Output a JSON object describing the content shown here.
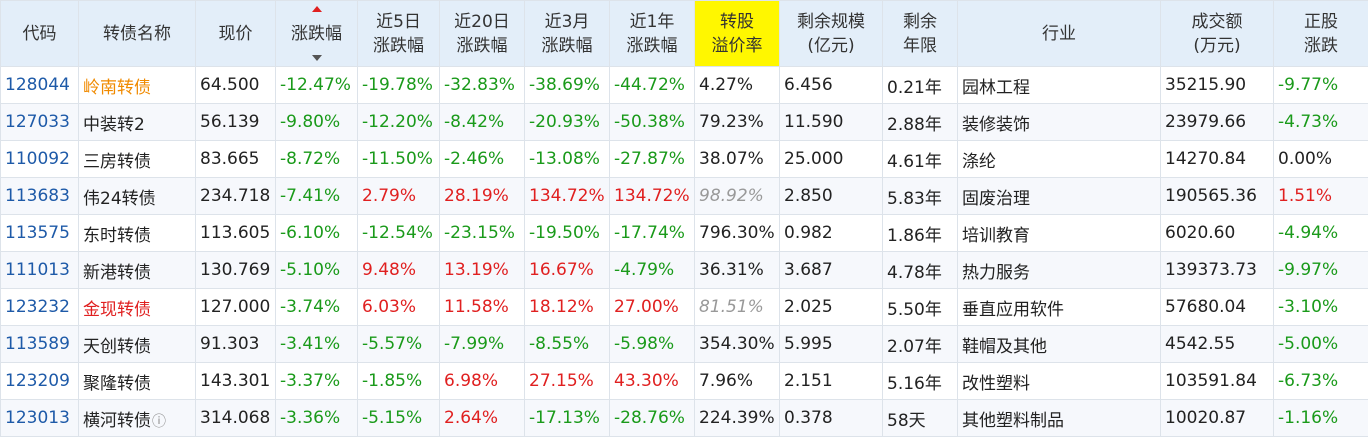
{
  "headers": {
    "code": "代码",
    "name": "转债名称",
    "price": "现价",
    "change": "涨跌幅",
    "chg5d_1": "近5日",
    "chg5d_2": "涨跌幅",
    "chg20d_1": "近20日",
    "chg20d_2": "涨跌幅",
    "chg3m_1": "近3月",
    "chg3m_2": "涨跌幅",
    "chg1y_1": "近1年",
    "chg1y_2": "涨跌幅",
    "premium_1": "转股",
    "premium_2": "溢价率",
    "scale_1": "剩余规模",
    "scale_2": "(亿元)",
    "term_1": "剩余",
    "term_2": "年限",
    "industry": "行业",
    "volume_1": "成交额",
    "volume_2": "(万元)",
    "stock_1": "正股",
    "stock_2": "涨跌"
  },
  "colors": {
    "header_bg": "#e3eef9",
    "highlight_header": "#fff700",
    "negative": "#1a9a1a",
    "positive": "#e02020",
    "code_link": "#1e5aa8",
    "name_orange": "#f08a00"
  },
  "rows": [
    {
      "code": "128044",
      "name": "岭南转债",
      "name_style": "orange",
      "price": "64.500",
      "change": "-12.47%",
      "chg5d": "-19.78%",
      "chg20d": "-32.83%",
      "chg3m": "-38.69%",
      "chg1y": "-44.72%",
      "premium": "4.27%",
      "premium_style": "normal",
      "scale": "6.456",
      "term": "0.21年",
      "industry": "园林工程",
      "volume": "35215.90",
      "stock": "-9.77%"
    },
    {
      "code": "127033",
      "name": "中装转2",
      "name_style": "normal",
      "price": "56.139",
      "change": "-9.80%",
      "chg5d": "-12.20%",
      "chg20d": "-8.42%",
      "chg3m": "-20.93%",
      "chg1y": "-50.38%",
      "premium": "79.23%",
      "premium_style": "normal",
      "scale": "11.590",
      "term": "2.88年",
      "industry": "装修装饰",
      "volume": "23979.66",
      "stock": "-4.73%"
    },
    {
      "code": "110092",
      "name": "三房转债",
      "name_style": "normal",
      "price": "83.665",
      "change": "-8.72%",
      "chg5d": "-11.50%",
      "chg20d": "-2.46%",
      "chg3m": "-13.08%",
      "chg1y": "-27.87%",
      "premium": "38.07%",
      "premium_style": "normal",
      "scale": "25.000",
      "term": "4.61年",
      "industry": "涤纶",
      "volume": "14270.84",
      "stock": "0.00%"
    },
    {
      "code": "113683",
      "name": "伟24转债",
      "name_style": "normal",
      "price": "234.718",
      "change": "-7.41%",
      "chg5d": "2.79%",
      "chg20d": "28.19%",
      "chg3m": "134.72%",
      "chg1y": "134.72%",
      "premium": "98.92%",
      "premium_style": "grey",
      "scale": "2.850",
      "term": "5.83年",
      "industry": "固废治理",
      "volume": "190565.36",
      "stock": "1.51%"
    },
    {
      "code": "113575",
      "name": "东时转债",
      "name_style": "normal",
      "price": "113.605",
      "change": "-6.10%",
      "chg5d": "-12.54%",
      "chg20d": "-23.15%",
      "chg3m": "-19.50%",
      "chg1y": "-17.74%",
      "premium": "796.30%",
      "premium_style": "normal",
      "scale": "0.982",
      "term": "1.86年",
      "industry": "培训教育",
      "volume": "6020.60",
      "stock": "-4.94%"
    },
    {
      "code": "111013",
      "name": "新港转债",
      "name_style": "normal",
      "price": "130.769",
      "change": "-5.10%",
      "chg5d": "9.48%",
      "chg20d": "13.19%",
      "chg3m": "16.67%",
      "chg1y": "-4.79%",
      "premium": "36.31%",
      "premium_style": "normal",
      "scale": "3.687",
      "term": "4.78年",
      "industry": "热力服务",
      "volume": "139373.73",
      "stock": "-9.97%"
    },
    {
      "code": "123232",
      "name": "金现转债",
      "name_style": "red",
      "price": "127.000",
      "change": "-3.74%",
      "chg5d": "6.03%",
      "chg20d": "11.58%",
      "chg3m": "18.12%",
      "chg1y": "27.00%",
      "premium": "81.51%",
      "premium_style": "grey",
      "scale": "2.025",
      "term": "5.50年",
      "industry": "垂直应用软件",
      "volume": "57680.04",
      "stock": "-3.10%"
    },
    {
      "code": "113589",
      "name": "天创转债",
      "name_style": "normal",
      "price": "91.303",
      "change": "-3.41%",
      "chg5d": "-5.57%",
      "chg20d": "-7.99%",
      "chg3m": "-8.55%",
      "chg1y": "-5.98%",
      "premium": "354.30%",
      "premium_style": "normal",
      "scale": "5.995",
      "term": "2.07年",
      "industry": "鞋帽及其他",
      "volume": "4542.55",
      "stock": "-5.00%"
    },
    {
      "code": "123209",
      "name": "聚隆转债",
      "name_style": "normal",
      "price": "143.301",
      "change": "-3.37%",
      "chg5d": "-1.85%",
      "chg20d": "6.98%",
      "chg3m": "27.15%",
      "chg1y": "43.30%",
      "premium": "7.96%",
      "premium_style": "normal",
      "scale": "2.151",
      "term": "5.16年",
      "industry": "改性塑料",
      "volume": "103591.84",
      "stock": "-6.73%"
    },
    {
      "code": "123013",
      "name": "横河转债",
      "name_style": "normal",
      "name_info": "ⓘ",
      "price": "314.068",
      "change": "-3.36%",
      "chg5d": "-5.15%",
      "chg20d": "2.64%",
      "chg3m": "-17.13%",
      "chg1y": "-28.76%",
      "premium": "224.39%",
      "premium_style": "normal",
      "scale": "0.378",
      "term": "58天",
      "industry": "其他塑料制品",
      "volume": "10020.87",
      "stock": "-1.16%"
    }
  ]
}
